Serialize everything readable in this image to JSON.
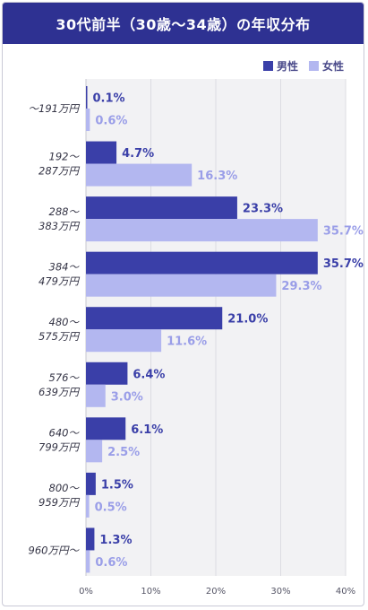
{
  "title": "30代前半（30歳〜34歳）の年収分布",
  "legend": [
    {
      "name": "男性",
      "color": "#3a3fa8"
    },
    {
      "name": "女性",
      "color": "#b3b7f0"
    }
  ],
  "chart_data": {
    "type": "bar",
    "orientation": "horizontal",
    "title": "30代前半（30歳〜34歳）の年収分布",
    "categories": [
      [
        "〜191万円"
      ],
      [
        "192〜",
        "287万円"
      ],
      [
        "288〜",
        "383万円"
      ],
      [
        "384〜",
        "479万円"
      ],
      [
        "480〜",
        "575万円"
      ],
      [
        "576〜",
        "639万円"
      ],
      [
        "640〜",
        "799万円"
      ],
      [
        "800〜",
        "959万円"
      ],
      [
        "960万円〜"
      ]
    ],
    "series": [
      {
        "name": "男性",
        "color": "#3a3fa8",
        "values": [
          0.1,
          4.7,
          23.3,
          35.7,
          21.0,
          6.4,
          6.1,
          1.5,
          1.3
        ],
        "labels": [
          "0.1%",
          "4.7%",
          "23.3%",
          "35.7%",
          "21.0%",
          "6.4%",
          "6.1%",
          "1.5%",
          "1.3%"
        ]
      },
      {
        "name": "女性",
        "color": "#b3b7f0",
        "values": [
          0.6,
          16.3,
          35.7,
          29.3,
          11.6,
          3.0,
          2.5,
          0.5,
          0.6
        ],
        "labels": [
          "0.6%",
          "16.3%",
          "35.7%",
          "29.3%",
          "11.6%",
          "3.0%",
          "2.5%",
          "0.5%",
          "0.6%"
        ]
      }
    ],
    "xlim": [
      0,
      40
    ],
    "xticks": [
      "0%",
      "10%",
      "20%",
      "30%",
      "40%"
    ],
    "grid": true,
    "legend_position": "top-right"
  }
}
